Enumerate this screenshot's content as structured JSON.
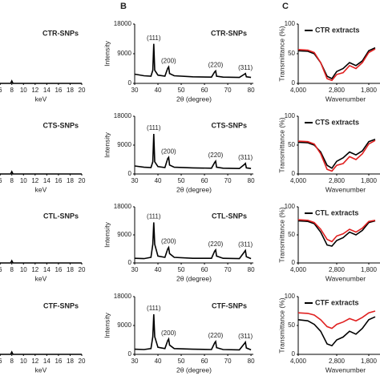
{
  "panel_labels": [
    "B",
    "C"
  ],
  "chart_data": [
    {
      "type": "line",
      "title": "CTR-SNPs",
      "xlabel": "keV",
      "xlim": [
        5.7,
        20
      ],
      "xticks": [
        6,
        8,
        10,
        12,
        14,
        16,
        18,
        20
      ],
      "ylim": [
        0,
        100
      ],
      "x": [
        5.7,
        7.8,
        8,
        8.2,
        20
      ],
      "series": [
        {
          "color": "#000000",
          "values": [
            0,
            0,
            4,
            0,
            0
          ]
        }
      ]
    },
    {
      "type": "line",
      "title": "CTS-SNPs",
      "xlabel": "keV",
      "xlim": [
        5.7,
        20
      ],
      "xticks": [
        6,
        8,
        10,
        12,
        14,
        16,
        18,
        20
      ],
      "ylim": [
        0,
        100
      ],
      "x": [
        5.7,
        7.8,
        8,
        8.2,
        20
      ],
      "series": [
        {
          "color": "#000000",
          "values": [
            0,
            0,
            4,
            0,
            0
          ]
        }
      ]
    },
    {
      "type": "line",
      "title": "CTL-SNPs",
      "xlabel": "keV",
      "xlim": [
        5.7,
        20
      ],
      "xticks": [
        6,
        8,
        10,
        12,
        14,
        16,
        18,
        20
      ],
      "ylim": [
        0,
        100
      ],
      "x": [
        5.7,
        7.8,
        8,
        8.2,
        20
      ],
      "series": [
        {
          "color": "#000000",
          "values": [
            0,
            0,
            4,
            0,
            0
          ]
        }
      ]
    },
    {
      "type": "line",
      "title": "CTF-SNPs",
      "xlabel": "keV",
      "xlim": [
        5.7,
        20
      ],
      "xticks": [
        6,
        8,
        10,
        12,
        14,
        16,
        18,
        20
      ],
      "ylim": [
        0,
        100
      ],
      "x": [
        5.7,
        7.8,
        8,
        8.2,
        20
      ],
      "series": [
        {
          "color": "#000000",
          "values": [
            0,
            0,
            4,
            0,
            0
          ]
        }
      ]
    },
    {
      "type": "line",
      "title": "CTR-SNPs",
      "xlabel": "2θ (degree)",
      "ylabel": "Intensity",
      "xlim": [
        30,
        81
      ],
      "xticks": [
        30,
        40,
        50,
        60,
        70,
        80
      ],
      "ylim": [
        0,
        18000
      ],
      "yticks": [
        0,
        9000,
        18000
      ],
      "x": [
        30,
        34,
        37,
        37.8,
        38.2,
        38.6,
        40,
        43,
        44.2,
        44.6,
        45,
        47,
        55,
        63,
        64.4,
        64.8,
        65.2,
        68,
        75,
        77.2,
        77.6,
        78,
        80
      ],
      "series": [
        {
          "color": "#000000",
          "values": [
            2800,
            2300,
            2200,
            4000,
            12000,
            4000,
            2500,
            2200,
            4600,
            5000,
            3000,
            2300,
            2000,
            1900,
            3500,
            3800,
            2200,
            1900,
            1800,
            2800,
            3000,
            2000,
            1800
          ]
        }
      ],
      "peak_labels": [
        "(111)",
        "(200)",
        "(220)",
        "(311)"
      ],
      "peak_positions": [
        38.2,
        44.6,
        64.8,
        77.6
      ]
    },
    {
      "type": "line",
      "title": "CTS-SNPs",
      "xlabel": "2θ (degree)",
      "ylabel": "Intensity",
      "xlim": [
        30,
        81
      ],
      "xticks": [
        30,
        40,
        50,
        60,
        70,
        80
      ],
      "ylim": [
        0,
        18000
      ],
      "yticks": [
        0,
        9000,
        18000
      ],
      "x": [
        30,
        34,
        37,
        37.8,
        38.2,
        38.6,
        40,
        43,
        44.2,
        44.6,
        45,
        47,
        55,
        63,
        64.4,
        64.8,
        65.2,
        68,
        75,
        77.2,
        77.6,
        78,
        80
      ],
      "series": [
        {
          "color": "#000000",
          "values": [
            2500,
            2100,
            2000,
            3800,
            12500,
            3800,
            2300,
            2000,
            4800,
            5200,
            2800,
            2100,
            1900,
            1800,
            3600,
            4000,
            2100,
            1800,
            1700,
            3000,
            3300,
            1900,
            1700
          ]
        }
      ],
      "peak_labels": [
        "(111)",
        "(200)",
        "(220)",
        "(311)"
      ],
      "peak_positions": [
        38.2,
        44.6,
        64.8,
        77.6
      ]
    },
    {
      "type": "line",
      "title": "CTL-SNPs",
      "xlabel": "2θ (degree)",
      "ylabel": "Intensity",
      "xlim": [
        30,
        81
      ],
      "xticks": [
        30,
        40,
        50,
        60,
        70,
        80
      ],
      "ylim": [
        0,
        18000
      ],
      "yticks": [
        0,
        9000,
        18000
      ],
      "x": [
        30,
        34,
        37,
        37.8,
        38.2,
        38.6,
        40,
        43,
        44.2,
        44.6,
        45,
        47,
        55,
        63,
        64.4,
        64.8,
        65.2,
        68,
        75,
        77.2,
        77.6,
        78,
        80
      ],
      "series": [
        {
          "color": "#000000",
          "values": [
            1500,
            1400,
            1800,
            6000,
            13000,
            6000,
            2200,
            1800,
            4500,
            5000,
            3000,
            1800,
            1500,
            1500,
            3800,
            4200,
            2200,
            1500,
            1400,
            3600,
            4000,
            2000,
            1400
          ]
        }
      ],
      "peak_labels": [
        "(111)",
        "(200)",
        "(220)",
        "(311)"
      ],
      "peak_positions": [
        38.2,
        44.6,
        64.8,
        77.6
      ]
    },
    {
      "type": "line",
      "title": "CTF-SNPs",
      "xlabel": "2θ (degree)",
      "ylabel": "Intensity",
      "xlim": [
        30,
        81
      ],
      "xticks": [
        30,
        40,
        50,
        60,
        70,
        80
      ],
      "ylim": [
        0,
        18000
      ],
      "yticks": [
        0,
        9000,
        18000
      ],
      "x": [
        30,
        34,
        37,
        37.8,
        38.2,
        38.6,
        40,
        43,
        44.2,
        44.6,
        45,
        47,
        55,
        63,
        64.4,
        64.8,
        65.2,
        68,
        75,
        77.2,
        77.6,
        78,
        80
      ],
      "series": [
        {
          "color": "#000000",
          "values": [
            1600,
            1500,
            1800,
            5500,
            12500,
            5500,
            2200,
            1800,
            4300,
            4800,
            2900,
            1800,
            1600,
            1500,
            3600,
            4000,
            2100,
            1500,
            1400,
            3400,
            3800,
            2000,
            1400
          ]
        }
      ],
      "peak_labels": [
        "(111)",
        "(200)",
        "(220)",
        "(311)"
      ],
      "peak_positions": [
        38.2,
        44.6,
        64.8,
        77.6
      ]
    },
    {
      "type": "line",
      "xlabel": "Wavenumber",
      "ylabel": "Transmittance (%)",
      "xlim": [
        4000,
        1400
      ],
      "xticks": [
        {
          "value": 4000,
          "label": "4,000"
        },
        {
          "value": 2800,
          "label": "2,800"
        },
        {
          "value": 1800,
          "label": "1,800"
        }
      ],
      "ylim": [
        0,
        100
      ],
      "yticks": [
        0,
        50,
        100
      ],
      "x": [
        4000,
        3700,
        3500,
        3300,
        3100,
        2950,
        2800,
        2600,
        2400,
        2200,
        2000,
        1800,
        1600
      ],
      "series": [
        {
          "name": "CTR extracts",
          "color": "#000000",
          "values": [
            55,
            54,
            50,
            35,
            12,
            8,
            20,
            25,
            35,
            30,
            38,
            55,
            60
          ]
        },
        {
          "color": "#e02020",
          "values": [
            57,
            56,
            52,
            35,
            8,
            5,
            15,
            18,
            30,
            25,
            35,
            52,
            58
          ]
        }
      ]
    },
    {
      "type": "line",
      "xlabel": "Wavenumber",
      "ylabel": "Transmittance (%)",
      "xlim": [
        4000,
        1400
      ],
      "xticks": [
        {
          "value": 4000,
          "label": "4,000"
        },
        {
          "value": 2800,
          "label": "2,800"
        },
        {
          "value": 1800,
          "label": "1,800"
        }
      ],
      "ylim": [
        0,
        100
      ],
      "yticks": [
        0,
        50,
        100
      ],
      "x": [
        4000,
        3700,
        3500,
        3300,
        3100,
        2950,
        2800,
        2600,
        2400,
        2200,
        2000,
        1800,
        1600
      ],
      "series": [
        {
          "name": "CTS extracts",
          "color": "#000000",
          "values": [
            55,
            54,
            50,
            38,
            15,
            10,
            22,
            28,
            38,
            33,
            40,
            56,
            60
          ]
        },
        {
          "color": "#e02020",
          "values": [
            57,
            56,
            52,
            35,
            8,
            5,
            15,
            18,
            30,
            25,
            35,
            52,
            58
          ]
        }
      ]
    },
    {
      "type": "line",
      "xlabel": "Wavenumber",
      "ylabel": "Transmittance (%)",
      "xlim": [
        4000,
        1400
      ],
      "xticks": [
        {
          "value": 4000,
          "label": "4,000"
        },
        {
          "value": 2800,
          "label": "2,800"
        },
        {
          "value": 1800,
          "label": "1,800"
        }
      ],
      "ylim": [
        0,
        100
      ],
      "yticks": [
        0,
        50,
        100
      ],
      "x": [
        4000,
        3700,
        3500,
        3300,
        3100,
        2950,
        2800,
        2600,
        2400,
        2200,
        2000,
        1800,
        1600
      ],
      "series": [
        {
          "name": "CTL extracts",
          "color": "#000000",
          "values": [
            75,
            74,
            70,
            55,
            32,
            30,
            40,
            45,
            55,
            50,
            58,
            72,
            75
          ]
        },
        {
          "color": "#e02020",
          "values": [
            77,
            76,
            72,
            60,
            42,
            38,
            48,
            52,
            60,
            55,
            62,
            74,
            76
          ]
        }
      ]
    },
    {
      "type": "line",
      "xlabel": "Wavenumber",
      "ylabel": "Transmittance (%)",
      "xlim": [
        4000,
        1400
      ],
      "xticks": [
        {
          "value": 4000,
          "label": "4,000"
        },
        {
          "value": 2800,
          "label": "2,800"
        },
        {
          "value": 1800,
          "label": "1,800"
        }
      ],
      "ylim": [
        0,
        100
      ],
      "yticks": [
        0,
        50,
        100
      ],
      "x": [
        4000,
        3700,
        3500,
        3300,
        3100,
        2950,
        2800,
        2600,
        2400,
        2200,
        2000,
        1800,
        1600
      ],
      "series": [
        {
          "name": "CTF extracts",
          "color": "#000000",
          "values": [
            60,
            58,
            52,
            40,
            18,
            15,
            25,
            30,
            40,
            35,
            45,
            60,
            65
          ]
        },
        {
          "color": "#e02020",
          "values": [
            72,
            71,
            68,
            60,
            48,
            45,
            52,
            56,
            62,
            58,
            64,
            72,
            75
          ]
        }
      ]
    }
  ]
}
